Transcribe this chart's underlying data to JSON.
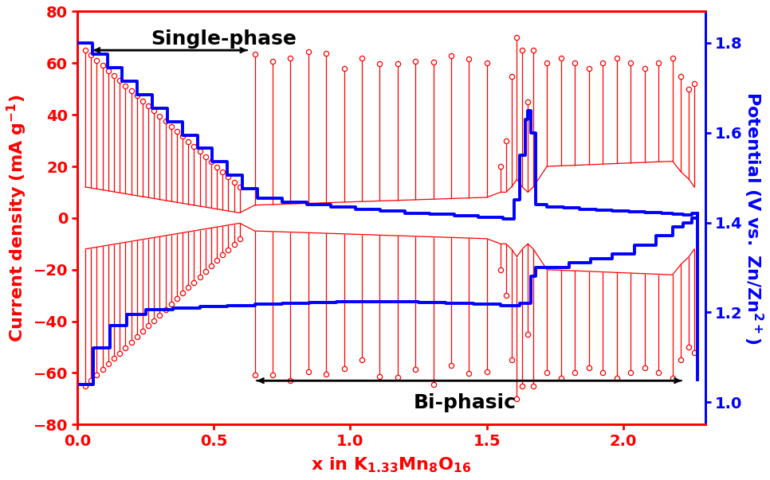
{
  "xlim": [
    0.0,
    2.3
  ],
  "ylim_left": [
    -80,
    80
  ],
  "ylim_right": [
    0.95,
    1.87
  ],
  "xticks": [
    0.0,
    0.5,
    1.0,
    1.5,
    2.0
  ],
  "yticks_left": [
    -80,
    -60,
    -40,
    -20,
    0,
    20,
    40,
    60,
    80
  ],
  "yticks_right": [
    1.0,
    1.2,
    1.4,
    1.6,
    1.8
  ],
  "left_color": "#FF0000",
  "right_color": "#0000FF",
  "annotation1_text": "Single-phase",
  "annotation2_text": "Bi-phasic",
  "spine_linewidth": 2.0,
  "tick_fontsize": 14,
  "label_fontsize": 16,
  "annotation_fontsize": 18,
  "charge_x": [
    0.0,
    0.055,
    0.11,
    0.165,
    0.22,
    0.275,
    0.33,
    0.385,
    0.44,
    0.495,
    0.55,
    0.605,
    0.66,
    0.75,
    0.84,
    0.93,
    1.02,
    1.11,
    1.2,
    1.29,
    1.38,
    1.47,
    1.56,
    1.6,
    1.62,
    1.64,
    1.65,
    1.66,
    1.68,
    1.72,
    1.78,
    1.84,
    1.9,
    1.96,
    2.02,
    2.08,
    2.14,
    2.18,
    2.22,
    2.25,
    2.27
  ],
  "charge_y": [
    1.8,
    1.775,
    1.745,
    1.715,
    1.685,
    1.655,
    1.625,
    1.595,
    1.565,
    1.535,
    1.505,
    1.475,
    1.455,
    1.445,
    1.44,
    1.435,
    1.43,
    1.425,
    1.42,
    1.418,
    1.415,
    1.412,
    1.408,
    1.45,
    1.55,
    1.63,
    1.65,
    1.6,
    1.44,
    1.435,
    1.432,
    1.43,
    1.428,
    1.426,
    1.424,
    1.422,
    1.42,
    1.418,
    1.416,
    1.42,
    1.05
  ],
  "discharge_x": [
    0.01,
    0.06,
    0.12,
    0.18,
    0.25,
    0.35,
    0.45,
    0.55,
    0.65,
    0.75,
    0.85,
    0.95,
    1.05,
    1.15,
    1.25,
    1.35,
    1.45,
    1.55,
    1.62,
    1.66,
    1.68,
    1.72,
    1.8,
    1.88,
    1.96,
    2.04,
    2.12,
    2.18,
    2.22,
    2.25,
    2.27
  ],
  "discharge_y": [
    1.04,
    1.12,
    1.17,
    1.195,
    1.205,
    1.21,
    1.213,
    1.215,
    1.218,
    1.22,
    1.222,
    1.223,
    1.224,
    1.224,
    1.222,
    1.22,
    1.218,
    1.215,
    1.22,
    1.28,
    1.3,
    1.3,
    1.31,
    1.32,
    1.33,
    1.35,
    1.37,
    1.39,
    1.4,
    1.41,
    1.42
  ]
}
